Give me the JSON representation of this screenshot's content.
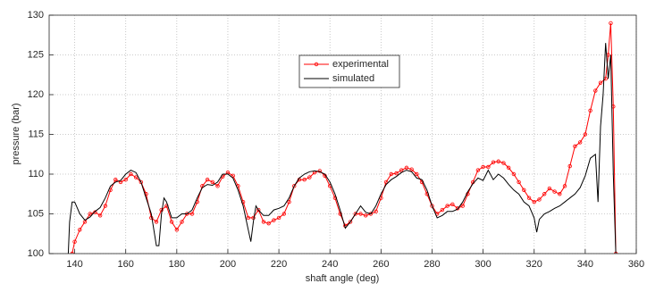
{
  "chart_data": {
    "type": "line",
    "x_label": "shaft angle (deg)",
    "y_label": "pressure (bar)",
    "xlim": [
      130,
      360
    ],
    "xticks": [
      140,
      160,
      180,
      200,
      220,
      240,
      260,
      280,
      300,
      320,
      340,
      360
    ],
    "ylim": [
      100,
      130
    ],
    "yticks": [
      100,
      105,
      110,
      115,
      120,
      125,
      130
    ],
    "grid": true,
    "legend": "top-center",
    "series": [
      {
        "name": "experimental",
        "color": "#ff0000",
        "marker": "circle",
        "x": [
          139,
          140,
          142,
          144,
          146,
          148,
          150,
          152,
          154,
          156,
          158,
          160,
          162,
          164,
          166,
          168,
          170,
          172,
          174,
          176,
          178,
          180,
          182,
          184,
          186,
          188,
          190,
          192,
          194,
          196,
          198,
          200,
          202,
          204,
          206,
          208,
          210,
          212,
          214,
          216,
          218,
          220,
          222,
          224,
          226,
          228,
          230,
          232,
          234,
          236,
          238,
          240,
          242,
          244,
          246,
          248,
          250,
          252,
          254,
          256,
          258,
          260,
          262,
          264,
          266,
          268,
          270,
          272,
          274,
          276,
          278,
          280,
          282,
          284,
          286,
          288,
          290,
          292,
          294,
          296,
          298,
          300,
          302,
          304,
          306,
          308,
          310,
          312,
          314,
          316,
          318,
          320,
          322,
          324,
          326,
          328,
          330,
          332,
          334,
          336,
          338,
          340,
          342,
          344,
          346,
          348,
          349,
          350,
          351,
          352
        ],
        "values": [
          100,
          101.5,
          103,
          104,
          105,
          105.2,
          104.8,
          106,
          108,
          109.3,
          109,
          109.3,
          110,
          109.6,
          109,
          107.5,
          104.5,
          104,
          105.5,
          106,
          104,
          103,
          104,
          105,
          105,
          106.5,
          108.5,
          109.3,
          109,
          108.5,
          109.7,
          110.2,
          109.8,
          108.5,
          106.5,
          104.5,
          104.5,
          105.5,
          104,
          103.8,
          104.2,
          104.5,
          105,
          106.5,
          108.5,
          109.3,
          109.3,
          109.6,
          110.2,
          110.4,
          109.8,
          108.5,
          107,
          105,
          103.5,
          104,
          105,
          105,
          104.8,
          105,
          105.3,
          107,
          109,
          110,
          110.1,
          110.5,
          110.8,
          110.6,
          110,
          109,
          107.5,
          106,
          105,
          105.5,
          106,
          106.2,
          105.7,
          106,
          107.5,
          109,
          110.5,
          110.9,
          110.9,
          111.5,
          111.6,
          111.4,
          110.8,
          110,
          109,
          108,
          107,
          106.5,
          106.8,
          107.5,
          108.2,
          107.8,
          107.5,
          108.5,
          111,
          113.5,
          114,
          115,
          118,
          120.5,
          121.5,
          122,
          125,
          129,
          118.5,
          100
        ]
      },
      {
        "name": "simulated",
        "color": "#000000",
        "x": [
          137.5,
          138,
          139,
          140,
          142,
          144,
          146,
          148,
          150,
          152,
          154,
          156,
          158,
          160,
          162,
          164,
          166,
          168,
          170,
          172,
          173,
          174,
          175,
          176,
          178,
          180,
          182,
          184,
          186,
          188,
          190,
          192,
          194,
          196,
          198,
          200,
          202,
          204,
          206,
          208,
          209,
          210,
          211,
          212,
          214,
          216,
          218,
          220,
          222,
          224,
          226,
          228,
          230,
          232,
          234,
          236,
          238,
          240,
          242,
          244,
          246,
          248,
          250,
          252,
          254,
          256,
          258,
          260,
          262,
          264,
          266,
          268,
          270,
          272,
          274,
          276,
          278,
          280,
          282,
          284,
          286,
          288,
          290,
          292,
          294,
          296,
          298,
          300,
          302,
          304,
          306,
          308,
          310,
          312,
          314,
          316,
          318,
          320,
          321,
          322,
          324,
          326,
          328,
          330,
          332,
          334,
          336,
          338,
          340,
          342,
          344,
          345,
          346,
          347,
          348,
          349,
          350,
          351,
          352
        ],
        "values": [
          100,
          104,
          106.5,
          106.5,
          105,
          104.2,
          104.6,
          105.3,
          105.8,
          107,
          108.5,
          109,
          109.2,
          110,
          110.5,
          110.2,
          109,
          107,
          105,
          101,
          101,
          105,
          107,
          106.5,
          104.5,
          104.5,
          105,
          105,
          105.5,
          107,
          108.3,
          108.7,
          108.6,
          109,
          110,
          110,
          109.5,
          108,
          106,
          103,
          101.5,
          104,
          106,
          105.5,
          104.8,
          104.8,
          105.5,
          105.7,
          106,
          107,
          108.5,
          109.5,
          110,
          110.3,
          110.4,
          110.3,
          110,
          109,
          107.5,
          105.5,
          103.2,
          104,
          105,
          106,
          105.2,
          105,
          106,
          107.5,
          108.7,
          109.3,
          109.7,
          110.2,
          110.5,
          110.3,
          109.5,
          109.3,
          108,
          106,
          104.5,
          104.8,
          105.3,
          105.3,
          105.6,
          106.5,
          107.8,
          108.8,
          109.5,
          109.2,
          110.5,
          109.3,
          110,
          109.5,
          108.7,
          108,
          107.5,
          106.5,
          106,
          104.5,
          102.7,
          104.3,
          105,
          105.3,
          105.7,
          106,
          106.5,
          107,
          107.5,
          108.3,
          109.8,
          112,
          112.5,
          106.5,
          116,
          120,
          126.5,
          122,
          125,
          110,
          100
        ]
      }
    ]
  }
}
